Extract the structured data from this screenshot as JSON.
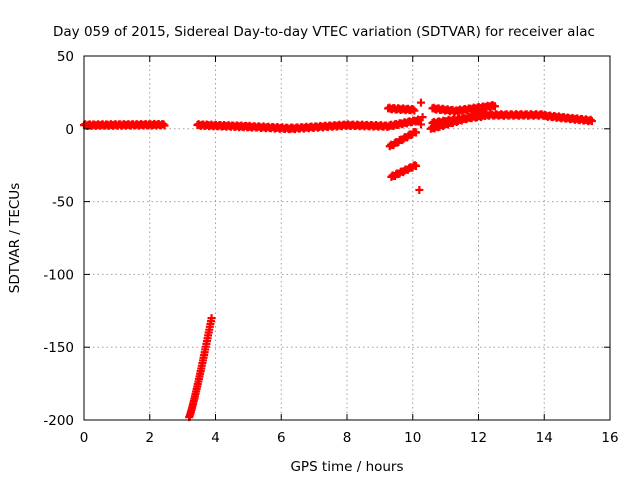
{
  "chart_data": {
    "type": "scatter",
    "title": "Day 059 of 2015, Sidereal Day-to-day VTEC variation (SDTVAR) for receiver alac",
    "xlabel": "GPS time / hours",
    "ylabel": "SDTVAR / TECUs",
    "xlim": [
      0,
      16
    ],
    "ylim": [
      -200,
      50
    ],
    "xticks": [
      0,
      2,
      4,
      6,
      8,
      10,
      12,
      14,
      16
    ],
    "yticks": [
      50,
      0,
      -50,
      -100,
      -150,
      -200
    ],
    "grid": true,
    "marker": "+",
    "color": "#ff0000",
    "series": [
      {
        "name": "SDTVAR",
        "segments": [
          {
            "x0": 0.0,
            "x1": 2.45,
            "y0": 2.5,
            "y1": 2.8,
            "curve": "flat",
            "n": 70
          },
          {
            "x0": 3.45,
            "x1": 5.0,
            "y0": 2.6,
            "y1": 1.5,
            "curve": "flat",
            "n": 45
          },
          {
            "x0": 5.0,
            "x1": 6.3,
            "y0": 1.5,
            "y1": 0.2,
            "curve": "flat",
            "n": 35
          },
          {
            "x0": 6.3,
            "x1": 8.0,
            "y0": 0.2,
            "y1": 2.5,
            "curve": "flat",
            "n": 45
          },
          {
            "x0": 8.0,
            "x1": 9.3,
            "y0": 2.5,
            "y1": 1.8,
            "curve": "flat",
            "n": 35
          },
          {
            "x0": 9.3,
            "x1": 10.2,
            "y0": 2.0,
            "y1": 6.0,
            "curve": "flat",
            "n": 25
          },
          {
            "x0": 3.2,
            "x1": 3.88,
            "y0": -198,
            "y1": -130,
            "curve": "steep",
            "n": 40
          },
          {
            "x0": 9.25,
            "x1": 10.05,
            "y0": 14.0,
            "y1": 13.0,
            "curve": "flat",
            "n": 22
          },
          {
            "x0": 9.3,
            "x1": 10.1,
            "y0": -12,
            "y1": -2,
            "curve": "flat",
            "n": 22
          },
          {
            "x0": 9.35,
            "x1": 10.1,
            "y0": -33,
            "y1": -25,
            "curve": "flat",
            "n": 22
          },
          {
            "x0": 10.6,
            "x1": 11.4,
            "y0": 14.0,
            "y1": 12.0,
            "curve": "flat",
            "n": 22
          },
          {
            "x0": 11.4,
            "x1": 12.5,
            "y0": 12.5,
            "y1": 16.0,
            "curve": "flat",
            "n": 30
          },
          {
            "x0": 10.55,
            "x1": 12.2,
            "y0": 0.0,
            "y1": 11.0,
            "curve": "flat",
            "n": 45
          },
          {
            "x0": 10.6,
            "x1": 12.2,
            "y0": 4.0,
            "y1": 9.0,
            "curve": "flat",
            "n": 40
          },
          {
            "x0": 12.2,
            "x1": 14.0,
            "y0": 9.5,
            "y1": 9.5,
            "curve": "flat",
            "n": 45
          },
          {
            "x0": 14.0,
            "x1": 15.45,
            "y0": 9.0,
            "y1": 5.5,
            "curve": "flat",
            "n": 40
          }
        ],
        "points": [
          {
            "x": 10.25,
            "y": 18
          },
          {
            "x": 10.3,
            "y": 8
          },
          {
            "x": 10.25,
            "y": 3
          },
          {
            "x": 10.2,
            "y": -42
          }
        ]
      }
    ]
  }
}
